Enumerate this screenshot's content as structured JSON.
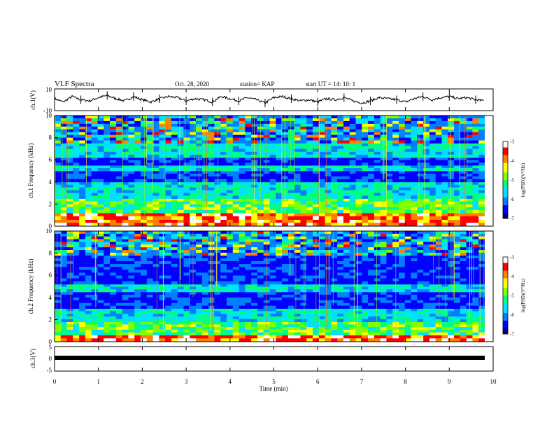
{
  "header": {
    "title": "VLF Spectra",
    "date": "Oct. 28, 2020",
    "station": "station= KAP",
    "start": "start  UT =   14: 10: 1"
  },
  "colors": {
    "colormap": [
      "#000080",
      "#0000ff",
      "#0080ff",
      "#00e0ff",
      "#00ff80",
      "#80ff00",
      "#ffff00",
      "#ff8000",
      "#ff0000",
      "#ffffff"
    ],
    "trace": "#000000"
  },
  "chart_data": [
    {
      "type": "line",
      "panel": "ch1-waveform",
      "ylabel": "ch.1(V)",
      "ylim": [
        -10,
        10
      ],
      "yticks": [
        "10",
        "-10"
      ],
      "x": [
        0,
        0.2,
        0.4,
        0.6,
        0.8,
        1.0,
        1.2,
        1.4,
        1.6,
        1.8,
        2.0,
        2.2,
        2.4,
        2.6,
        2.8,
        3.0,
        3.2,
        3.4,
        3.6,
        3.8,
        4.0,
        4.2,
        4.4,
        4.6,
        4.8,
        5.0,
        5.2,
        5.4,
        5.6,
        5.8,
        6.0,
        6.2,
        6.4,
        6.6,
        6.8,
        7.0,
        7.2,
        7.4,
        7.6,
        7.8,
        8.0,
        8.2,
        8.4,
        8.6,
        8.8,
        9.0,
        9.2,
        9.4,
        9.6,
        9.8
      ],
      "values": [
        1,
        -2,
        3,
        0,
        -1,
        2,
        4,
        1,
        -1,
        3,
        0,
        -2,
        1,
        3,
        2,
        -1,
        1,
        0,
        -2,
        3,
        1,
        -1,
        2,
        0,
        -3,
        2,
        3,
        1,
        -1,
        0,
        -2,
        1,
        0,
        2,
        -1,
        -3,
        -1,
        2,
        1,
        0,
        -2,
        1,
        3,
        0,
        2,
        3,
        1,
        2,
        0,
        -1
      ]
    },
    {
      "type": "heatmap",
      "panel": "ch1-spectrogram",
      "ylabel": "ch.1 Frequency (kHz)",
      "ylim": [
        0,
        10
      ],
      "yticks": [
        "0",
        "2",
        "4",
        "6",
        "8",
        "10"
      ],
      "colorbar": {
        "label": "log(PSD)(V²/Hz)",
        "range": [
          -7,
          -3
        ],
        "ticks": [
          "-3",
          "-4",
          "-5",
          "-6",
          "-7"
        ]
      },
      "bands_khz": [
        [
          0,
          0.6,
          "high"
        ],
        [
          0.6,
          1.2,
          "high"
        ],
        [
          1.2,
          2.5,
          "mid"
        ],
        [
          2.5,
          4,
          "midlow"
        ],
        [
          4,
          5,
          "low"
        ],
        [
          5,
          5.5,
          "midlow"
        ],
        [
          5.5,
          6.2,
          "low"
        ],
        [
          6.2,
          7.5,
          "midlow"
        ],
        [
          7.5,
          10,
          "spiky"
        ]
      ]
    },
    {
      "type": "heatmap",
      "panel": "ch2-spectrogram",
      "ylabel": "ch.2 Frequency (kHz)",
      "ylim": [
        0,
        10
      ],
      "yticks": [
        "0",
        "2",
        "4",
        "6",
        "8",
        "10"
      ],
      "colorbar": {
        "label": "log(PSD)(V²/Hz)",
        "range": [
          -7,
          -3
        ],
        "ticks": [
          "-3",
          "-4",
          "-5",
          "-6",
          "-7"
        ]
      },
      "bands_khz": [
        [
          0,
          0.6,
          "high"
        ],
        [
          0.6,
          1.8,
          "mid"
        ],
        [
          1.8,
          3,
          "midlow"
        ],
        [
          3,
          4.5,
          "low"
        ],
        [
          4.5,
          5.2,
          "midlow"
        ],
        [
          5.2,
          7.8,
          "low"
        ],
        [
          7.8,
          10,
          "spiky"
        ]
      ]
    },
    {
      "type": "line",
      "panel": "ch3-waveform",
      "ylabel": "ch.3(V)",
      "ylim": [
        -5,
        5
      ],
      "yticks": [
        "5",
        "0",
        "-5"
      ],
      "x": [
        0,
        9.8
      ],
      "values": [
        0,
        0
      ]
    }
  ],
  "xaxis": {
    "label": "Time (min)",
    "ticks": [
      "0",
      "1",
      "2",
      "3",
      "4",
      "5",
      "6",
      "7",
      "8",
      "9",
      "10"
    ],
    "range": [
      0,
      10
    ]
  }
}
